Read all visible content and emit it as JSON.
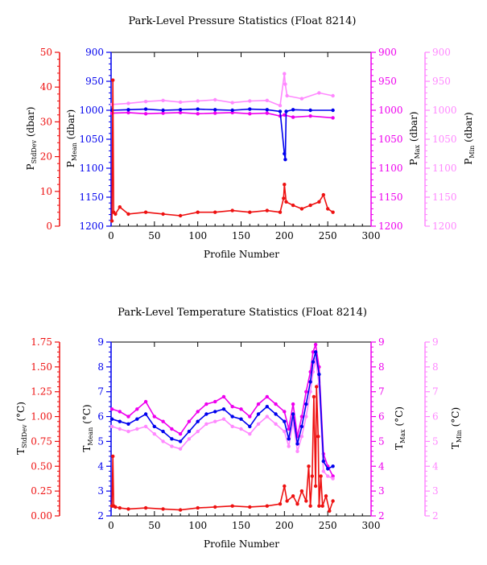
{
  "colors": {
    "stddev": "#ee1111",
    "mean": "#0000ee",
    "max": "#ee00ee",
    "min": "#ff88ff",
    "axis": "#000000"
  },
  "chart_data": [
    {
      "type": "line",
      "title": "Park-Level Pressure Statistics (Float 8214)",
      "xlabel": "Profile Number",
      "xlim": [
        0,
        300
      ],
      "xticks": [
        "0",
        "50",
        "100",
        "150",
        "200",
        "250",
        "300"
      ],
      "axes": {
        "stddev": {
          "label_main": "P",
          "label_sub": "StdDev",
          "label_unit": " (dbar)",
          "lim": [
            0,
            50
          ],
          "ticks": [
            "0",
            "10",
            "20",
            "30",
            "40",
            "50"
          ],
          "inverted": false
        },
        "mean": {
          "label_main": "P",
          "label_sub": "Mean",
          "label_unit": " (dbar)",
          "lim": [
            900,
            1200
          ],
          "ticks": [
            "900",
            "950",
            "1000",
            "1050",
            "1100",
            "1150",
            "1200"
          ],
          "inverted": true
        },
        "max": {
          "label_main": "P",
          "label_sub": "Max",
          "label_unit": " (dbar)",
          "lim": [
            900,
            1200
          ],
          "ticks": [
            "900",
            "950",
            "1000",
            "1050",
            "1100",
            "1150",
            "1200"
          ],
          "inverted": true
        },
        "min": {
          "label_main": "P",
          "label_sub": "Min",
          "label_unit": " (dbar)",
          "lim": [
            900,
            1200
          ],
          "ticks": [
            "900",
            "950",
            "1000",
            "1050",
            "1100",
            "1150",
            "1200"
          ],
          "inverted": true
        }
      },
      "series": [
        {
          "key": "min",
          "segments": [
            {
              "x": [
                1,
                20,
                40,
                60,
                80,
                100,
                120,
                140,
                160,
                180,
                195,
                200,
                201,
                203,
                220,
                240,
                256
              ],
              "y": [
                990,
                988,
                985,
                983,
                986,
                984,
                982,
                987,
                984,
                983,
                992,
                937,
                955,
                975,
                980,
                970,
                975
              ]
            }
          ]
        },
        {
          "key": "max",
          "segments": [
            {
              "x": [
                1,
                20,
                40,
                60,
                80,
                100,
                120,
                140,
                160,
                180,
                195,
                200,
                210,
                230,
                256
              ],
              "y": [
                1005,
                1004,
                1006,
                1005,
                1004,
                1006,
                1005,
                1004,
                1006,
                1005,
                1010,
                1008,
                1012,
                1010,
                1013
              ]
            }
          ]
        },
        {
          "key": "mean",
          "segments": [
            {
              "x": [
                1,
                20,
                40,
                60,
                80,
                100,
                120,
                140,
                160,
                180,
                195,
                200,
                201,
                202,
                210,
                230,
                256
              ],
              "y": [
                1000,
                999,
                998,
                1000,
                999,
                998,
                999,
                1000,
                998,
                999,
                1002,
                1075,
                1085,
                1002,
                999,
                1000,
                1000
              ]
            }
          ]
        },
        {
          "key": "stddev",
          "segments": [
            {
              "x": [
                1,
                2,
                3,
                5,
                10,
                20,
                40,
                60,
                80,
                100,
                120,
                140,
                160,
                180,
                195,
                199,
                200,
                202,
                210,
                220,
                230,
                240,
                245,
                250,
                256
              ],
              "y": [
                1.5,
                42,
                4,
                3.5,
                5.5,
                3.5,
                4,
                3.5,
                3,
                4,
                4,
                4.5,
                4,
                4.5,
                4,
                8,
                12,
                7,
                6,
                5,
                6,
                7,
                9,
                5,
                4
              ]
            }
          ]
        }
      ]
    },
    {
      "type": "line",
      "title": "Park-Level Temperature Statistics (Float 8214)",
      "xlabel": "Profile Number",
      "xlim": [
        0,
        300
      ],
      "xticks": [
        "0",
        "50",
        "100",
        "150",
        "200",
        "250",
        "300"
      ],
      "axes": {
        "stddev": {
          "label_main": "T",
          "label_sub": "StdDev",
          "label_unit": " (°C)",
          "lim": [
            0,
            1.75
          ],
          "ticks": [
            "0.00",
            "0.25",
            "0.50",
            "0.75",
            "1.00",
            "1.25",
            "1.50",
            "1.75"
          ],
          "inverted": false
        },
        "mean": {
          "label_main": "T",
          "label_sub": "Mean",
          "label_unit": " (°C)",
          "lim": [
            2,
            9
          ],
          "ticks": [
            "2",
            "3",
            "4",
            "5",
            "6",
            "7",
            "8",
            "9"
          ],
          "inverted": false
        },
        "max": {
          "label_main": "T",
          "label_sub": "Max",
          "label_unit": " (°C)",
          "lim": [
            2,
            9
          ],
          "ticks": [
            "2",
            "3",
            "4",
            "5",
            "6",
            "7",
            "8",
            "9"
          ],
          "inverted": false
        },
        "min": {
          "label_main": "T",
          "label_sub": "Min",
          "label_unit": " (°C)",
          "lim": [
            2,
            9
          ],
          "ticks": [
            "2",
            "3",
            "4",
            "5",
            "6",
            "7",
            "8",
            "9"
          ],
          "inverted": false
        }
      },
      "series": [
        {
          "key": "max",
          "segments": [
            {
              "x": [
                1,
                10,
                20,
                30,
                40,
                50,
                60,
                70,
                80,
                90,
                100,
                110,
                120,
                130,
                140,
                150,
                160,
                170,
                180,
                190,
                200,
                205,
                210,
                215,
                220,
                225,
                230,
                233,
                236,
                240,
                245,
                250,
                256
              ],
              "y": [
                6.3,
                6.2,
                6.0,
                6.3,
                6.6,
                6.0,
                5.8,
                5.5,
                5.3,
                5.8,
                6.2,
                6.5,
                6.6,
                6.8,
                6.4,
                6.3,
                6.0,
                6.5,
                6.8,
                6.5,
                6.2,
                5.5,
                6.5,
                5.2,
                6.0,
                7.0,
                7.8,
                8.6,
                8.9,
                8.0,
                4.5,
                4.0,
                3.6
              ]
            }
          ]
        },
        {
          "key": "min",
          "segments": [
            {
              "x": [
                1,
                10,
                20,
                30,
                40,
                50,
                60,
                70,
                80,
                90,
                100,
                110,
                120,
                130,
                140,
                150,
                160,
                170,
                180,
                190,
                200,
                205,
                210,
                215,
                220,
                225,
                230,
                233,
                236,
                240,
                245,
                250,
                256
              ],
              "y": [
                5.6,
                5.5,
                5.4,
                5.5,
                5.6,
                5.3,
                5.0,
                4.8,
                4.7,
                5.1,
                5.4,
                5.7,
                5.8,
                5.9,
                5.6,
                5.5,
                5.3,
                5.7,
                6.0,
                5.7,
                5.4,
                4.8,
                5.8,
                4.6,
                5.2,
                6.0,
                7.0,
                7.8,
                8.3,
                7.3,
                3.8,
                3.6,
                3.5
              ]
            }
          ]
        },
        {
          "key": "mean",
          "segments": [
            {
              "x": [
                1,
                10,
                20,
                30,
                40,
                50,
                60,
                70,
                80,
                90,
                100,
                110,
                120,
                130,
                140,
                150,
                160,
                170,
                180,
                190,
                200,
                205,
                210,
                215,
                220,
                225,
                230,
                233,
                236,
                240,
                245,
                250,
                256
              ],
              "y": [
                5.9,
                5.8,
                5.7,
                5.9,
                6.1,
                5.6,
                5.4,
                5.1,
                5.0,
                5.4,
                5.8,
                6.1,
                6.2,
                6.3,
                6.0,
                5.9,
                5.6,
                6.1,
                6.4,
                6.1,
                5.8,
                5.1,
                6.1,
                4.9,
                5.6,
                6.5,
                7.4,
                8.2,
                8.6,
                7.7,
                4.2,
                3.9,
                4.0
              ]
            }
          ]
        },
        {
          "key": "stddev",
          "segments": [
            {
              "x": [
                1,
                2,
                3,
                5,
                10,
                20,
                40,
                60,
                80,
                100,
                120,
                140,
                160,
                180,
                195,
                200,
                203,
                210,
                215,
                220,
                225,
                228,
                230,
                232,
                234,
                236,
                237,
                239,
                240,
                242,
                244,
                248,
                252,
                256
              ],
              "y": [
                0.1,
                0.6,
                0.1,
                0.09,
                0.08,
                0.07,
                0.08,
                0.07,
                0.06,
                0.08,
                0.09,
                0.1,
                0.09,
                0.1,
                0.12,
                0.3,
                0.15,
                0.2,
                0.12,
                0.25,
                0.15,
                0.5,
                0.1,
                0.4,
                1.2,
                0.3,
                1.3,
                0.8,
                0.1,
                0.4,
                0.1,
                0.2,
                0.05,
                0.15
              ]
            }
          ]
        }
      ]
    }
  ]
}
